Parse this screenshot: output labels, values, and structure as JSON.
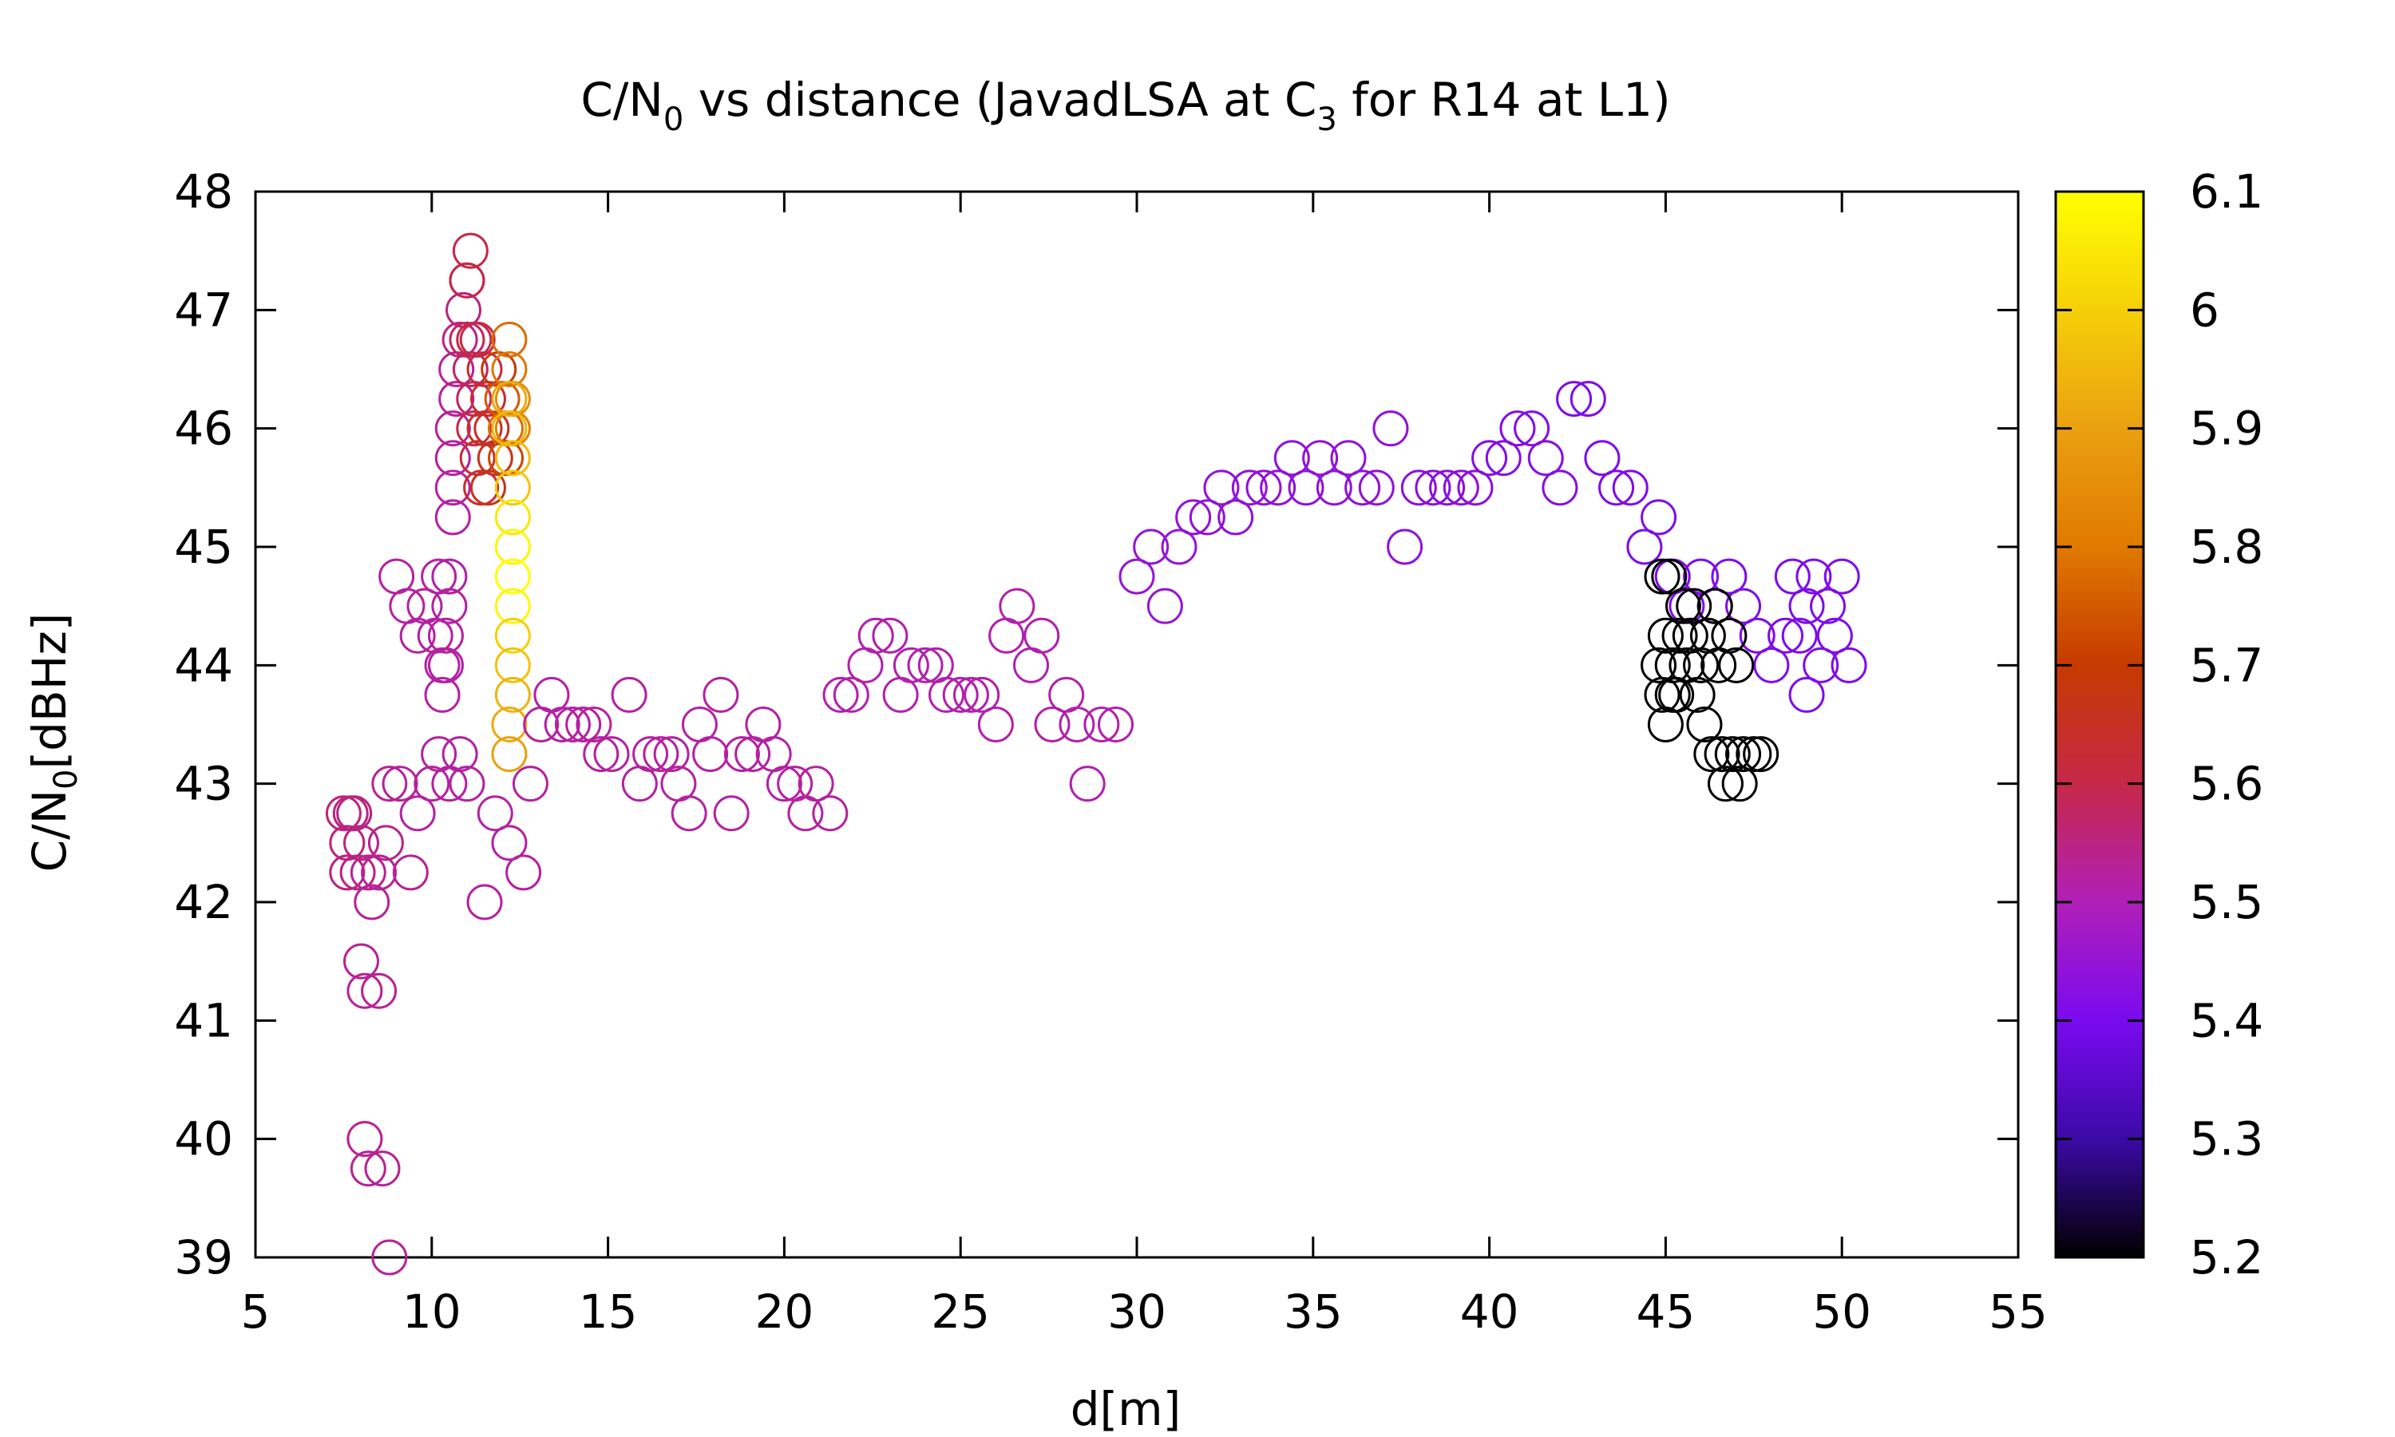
{
  "chart_data": {
    "type": "scatter",
    "title": {
      "part1": "C/N",
      "sub1": "0",
      "part2": " vs distance (JavadLSA at C",
      "sub2": "3",
      "part3": " for R14 at L1)"
    },
    "xlabel": "d[m]",
    "ylabel": {
      "part1": "C/N",
      "sub": "0",
      "part2": "[dBHz]"
    },
    "xlim": [
      5,
      55
    ],
    "ylim": [
      39,
      48
    ],
    "xticks": [
      5,
      10,
      15,
      20,
      25,
      30,
      35,
      40,
      45,
      50,
      55
    ],
    "yticks": [
      39,
      40,
      41,
      42,
      43,
      44,
      45,
      46,
      47,
      48
    ],
    "grid": false,
    "marker": "open-circle",
    "colorbar": {
      "range": [
        5.2,
        6.1
      ],
      "ticks": [
        "5.2",
        "5.3",
        "5.4",
        "5.5",
        "5.6",
        "5.7",
        "5.8",
        "5.9",
        "6",
        "6.1"
      ],
      "palette": [
        "#000000",
        "#3b0aa6",
        "#7a0af0",
        "#b01fb8",
        "#c62848",
        "#c63a00",
        "#e07a00",
        "#eaa010",
        "#f5d008",
        "#ffff00"
      ]
    },
    "points": [
      [
        7.5,
        42.75,
        5.56
      ],
      [
        7.7,
        42.75,
        5.55
      ],
      [
        7.8,
        42.75,
        5.55
      ],
      [
        7.6,
        42.5,
        5.55
      ],
      [
        8.0,
        42.5,
        5.54
      ],
      [
        7.6,
        42.25,
        5.55
      ],
      [
        7.9,
        42.25,
        5.55
      ],
      [
        8.2,
        42.25,
        5.54
      ],
      [
        8.5,
        42.25,
        5.53
      ],
      [
        8.3,
        42.0,
        5.53
      ],
      [
        8.7,
        42.5,
        5.54
      ],
      [
        8.0,
        41.5,
        5.53
      ],
      [
        8.5,
        41.25,
        5.53
      ],
      [
        8.1,
        41.25,
        5.53
      ],
      [
        8.1,
        40.0,
        5.53
      ],
      [
        8.2,
        39.75,
        5.53
      ],
      [
        8.6,
        39.75,
        5.53
      ],
      [
        8.8,
        39.0,
        5.53
      ],
      [
        8.8,
        43.0,
        5.53
      ],
      [
        9.1,
        43.0,
        5.53
      ],
      [
        9.4,
        42.25,
        5.53
      ],
      [
        9.6,
        42.75,
        5.52
      ],
      [
        10.0,
        43.0,
        5.52
      ],
      [
        10.2,
        43.25,
        5.52
      ],
      [
        10.5,
        43.0,
        5.52
      ],
      [
        11.0,
        43.0,
        5.52
      ],
      [
        10.8,
        43.25,
        5.52
      ],
      [
        9.0,
        44.75,
        5.52
      ],
      [
        9.3,
        44.5,
        5.52
      ],
      [
        9.6,
        44.25,
        5.52
      ],
      [
        9.8,
        44.5,
        5.52
      ],
      [
        10.1,
        44.25,
        5.52
      ],
      [
        10.3,
        44.0,
        5.52
      ],
      [
        10.3,
        43.75,
        5.52
      ],
      [
        10.4,
        44.25,
        5.52
      ],
      [
        10.5,
        44.5,
        5.52
      ],
      [
        10.5,
        44.75,
        5.52
      ],
      [
        10.4,
        44.0,
        5.52
      ],
      [
        10.2,
        44.75,
        5.52
      ],
      [
        10.6,
        45.25,
        5.52
      ],
      [
        10.6,
        45.5,
        5.52
      ],
      [
        10.6,
        45.75,
        5.52
      ],
      [
        10.6,
        46.0,
        5.53
      ],
      [
        10.7,
        46.25,
        5.53
      ],
      [
        10.7,
        46.5,
        5.53
      ],
      [
        10.8,
        46.75,
        5.54
      ],
      [
        10.9,
        47.0,
        5.55
      ],
      [
        11.0,
        47.25,
        5.58
      ],
      [
        11.1,
        47.5,
        5.6
      ],
      [
        11.0,
        47.25,
        5.6
      ],
      [
        11.0,
        46.75,
        5.58
      ],
      [
        11.1,
        46.5,
        5.58
      ],
      [
        11.2,
        46.25,
        5.58
      ],
      [
        11.2,
        46.0,
        5.6
      ],
      [
        11.3,
        45.75,
        5.62
      ],
      [
        11.4,
        45.5,
        5.63
      ],
      [
        11.5,
        46.5,
        5.62
      ],
      [
        11.6,
        46.25,
        5.63
      ],
      [
        11.7,
        46.0,
        5.65
      ],
      [
        11.8,
        45.75,
        5.66
      ],
      [
        11.6,
        45.5,
        5.66
      ],
      [
        11.3,
        46.75,
        5.6
      ],
      [
        11.5,
        46.0,
        5.65
      ],
      [
        11.2,
        46.75,
        5.6
      ],
      [
        11.9,
        46.5,
        5.7
      ],
      [
        12.0,
        46.25,
        5.75
      ],
      [
        12.1,
        46.0,
        5.78
      ],
      [
        12.2,
        46.75,
        5.78
      ],
      [
        12.2,
        46.5,
        5.8
      ],
      [
        12.1,
        45.75,
        5.72
      ],
      [
        12.3,
        46.0,
        5.82
      ],
      [
        12.3,
        46.25,
        5.85
      ],
      [
        12.2,
        46.25,
        5.92
      ],
      [
        12.2,
        46.0,
        5.95
      ],
      [
        12.3,
        45.75,
        5.96
      ],
      [
        12.3,
        45.5,
        5.98
      ],
      [
        12.3,
        45.25,
        6.05
      ],
      [
        12.3,
        45.0,
        6.08
      ],
      [
        12.3,
        44.75,
        6.1
      ],
      [
        12.3,
        44.5,
        6.08
      ],
      [
        12.3,
        44.25,
        6.0
      ],
      [
        12.3,
        44.0,
        5.97
      ],
      [
        12.3,
        43.75,
        5.94
      ],
      [
        12.2,
        43.5,
        5.92
      ],
      [
        12.2,
        43.25,
        5.9
      ],
      [
        11.5,
        42.0,
        5.52
      ],
      [
        11.8,
        42.75,
        5.52
      ],
      [
        12.2,
        42.5,
        5.52
      ],
      [
        12.6,
        42.25,
        5.52
      ],
      [
        12.8,
        43.0,
        5.52
      ],
      [
        13.1,
        43.5,
        5.52
      ],
      [
        13.4,
        43.75,
        5.52
      ],
      [
        13.7,
        43.5,
        5.52
      ],
      [
        14.0,
        43.5,
        5.52
      ],
      [
        14.3,
        43.5,
        5.52
      ],
      [
        14.6,
        43.5,
        5.52
      ],
      [
        14.8,
        43.25,
        5.52
      ],
      [
        15.1,
        43.25,
        5.52
      ],
      [
        15.6,
        43.75,
        5.52
      ],
      [
        15.9,
        43.0,
        5.52
      ],
      [
        16.2,
        43.25,
        5.52
      ],
      [
        16.5,
        43.25,
        5.52
      ],
      [
        16.8,
        43.25,
        5.52
      ],
      [
        17.0,
        43.0,
        5.52
      ],
      [
        17.3,
        42.75,
        5.52
      ],
      [
        17.6,
        43.5,
        5.52
      ],
      [
        17.9,
        43.25,
        5.52
      ],
      [
        18.2,
        43.75,
        5.52
      ],
      [
        18.5,
        42.75,
        5.52
      ],
      [
        18.8,
        43.25,
        5.52
      ],
      [
        19.1,
        43.25,
        5.52
      ],
      [
        19.4,
        43.5,
        5.52
      ],
      [
        19.7,
        43.25,
        5.52
      ],
      [
        20.0,
        43.0,
        5.52
      ],
      [
        20.3,
        43.0,
        5.52
      ],
      [
        20.6,
        42.75,
        5.52
      ],
      [
        20.9,
        43.0,
        5.52
      ],
      [
        21.3,
        42.75,
        5.52
      ],
      [
        21.6,
        43.75,
        5.51
      ],
      [
        21.9,
        43.75,
        5.51
      ],
      [
        22.3,
        44.0,
        5.51
      ],
      [
        22.6,
        44.25,
        5.51
      ],
      [
        23.0,
        44.25,
        5.51
      ],
      [
        23.3,
        43.75,
        5.51
      ],
      [
        23.6,
        44.0,
        5.51
      ],
      [
        24.0,
        44.0,
        5.51
      ],
      [
        24.3,
        44.0,
        5.51
      ],
      [
        24.6,
        43.75,
        5.51
      ],
      [
        25.0,
        43.75,
        5.51
      ],
      [
        25.3,
        43.75,
        5.51
      ],
      [
        25.6,
        43.75,
        5.51
      ],
      [
        26.0,
        43.5,
        5.51
      ],
      [
        26.3,
        44.25,
        5.51
      ],
      [
        26.6,
        44.5,
        5.51
      ],
      [
        27.0,
        44.0,
        5.51
      ],
      [
        27.3,
        44.25,
        5.51
      ],
      [
        27.6,
        43.5,
        5.51
      ],
      [
        28.0,
        43.75,
        5.51
      ],
      [
        28.3,
        43.5,
        5.51
      ],
      [
        28.6,
        43.0,
        5.51
      ],
      [
        29.0,
        43.5,
        5.51
      ],
      [
        29.4,
        43.5,
        5.51
      ],
      [
        30.0,
        44.75,
        5.45
      ],
      [
        30.4,
        45.0,
        5.45
      ],
      [
        30.8,
        44.5,
        5.45
      ],
      [
        31.2,
        45.0,
        5.45
      ],
      [
        31.6,
        45.25,
        5.44
      ],
      [
        32.0,
        45.25,
        5.44
      ],
      [
        32.4,
        45.5,
        5.44
      ],
      [
        32.8,
        45.25,
        5.44
      ],
      [
        33.2,
        45.5,
        5.44
      ],
      [
        33.6,
        45.5,
        5.44
      ],
      [
        34.0,
        45.5,
        5.44
      ],
      [
        34.4,
        45.75,
        5.44
      ],
      [
        34.8,
        45.5,
        5.44
      ],
      [
        35.2,
        45.75,
        5.44
      ],
      [
        35.6,
        45.5,
        5.44
      ],
      [
        36.0,
        45.75,
        5.44
      ],
      [
        36.4,
        45.5,
        5.44
      ],
      [
        36.8,
        45.5,
        5.44
      ],
      [
        37.2,
        46.0,
        5.44
      ],
      [
        37.6,
        45.0,
        5.44
      ],
      [
        38.0,
        45.5,
        5.43
      ],
      [
        38.4,
        45.5,
        5.43
      ],
      [
        38.8,
        45.5,
        5.43
      ],
      [
        39.2,
        45.5,
        5.43
      ],
      [
        39.6,
        45.5,
        5.43
      ],
      [
        40.0,
        45.75,
        5.42
      ],
      [
        40.4,
        45.75,
        5.42
      ],
      [
        40.8,
        46.0,
        5.42
      ],
      [
        41.2,
        46.0,
        5.42
      ],
      [
        41.6,
        45.75,
        5.42
      ],
      [
        42.0,
        45.5,
        5.42
      ],
      [
        42.4,
        46.25,
        5.41
      ],
      [
        42.8,
        46.25,
        5.41
      ],
      [
        43.2,
        45.75,
        5.41
      ],
      [
        43.6,
        45.5,
        5.41
      ],
      [
        44.0,
        45.5,
        5.41
      ],
      [
        44.4,
        45.0,
        5.41
      ],
      [
        44.8,
        45.25,
        5.41
      ],
      [
        45.2,
        44.75,
        5.41
      ],
      [
        45.6,
        44.5,
        5.41
      ],
      [
        46.0,
        44.75,
        5.41
      ],
      [
        46.4,
        44.5,
        5.41
      ],
      [
        46.8,
        44.75,
        5.41
      ],
      [
        47.2,
        44.5,
        5.41
      ],
      [
        47.6,
        44.25,
        5.41
      ],
      [
        48.0,
        44.0,
        5.41
      ],
      [
        48.4,
        44.25,
        5.41
      ],
      [
        48.8,
        44.25,
        5.41
      ],
      [
        49.2,
        44.75,
        5.41
      ],
      [
        49.6,
        44.5,
        5.41
      ],
      [
        50.0,
        44.75,
        5.41
      ],
      [
        49.0,
        43.75,
        5.41
      ],
      [
        49.4,
        44.0,
        5.41
      ],
      [
        49.8,
        44.25,
        5.41
      ],
      [
        50.2,
        44.0,
        5.41
      ],
      [
        48.6,
        44.75,
        5.41
      ],
      [
        49.0,
        44.5,
        5.41
      ],
      [
        44.9,
        44.75,
        5.2
      ],
      [
        45.1,
        44.75,
        5.2
      ],
      [
        45.0,
        44.25,
        5.2
      ],
      [
        45.2,
        44.0,
        5.2
      ],
      [
        45.3,
        43.75,
        5.2
      ],
      [
        45.4,
        44.25,
        5.2
      ],
      [
        45.5,
        44.5,
        5.2
      ],
      [
        45.6,
        44.0,
        5.2
      ],
      [
        45.7,
        44.25,
        5.2
      ],
      [
        45.8,
        44.5,
        5.2
      ],
      [
        45.9,
        43.75,
        5.2
      ],
      [
        46.0,
        44.0,
        5.2
      ],
      [
        46.1,
        43.5,
        5.2
      ],
      [
        46.2,
        44.25,
        5.2
      ],
      [
        46.3,
        43.25,
        5.2
      ],
      [
        46.4,
        44.5,
        5.2
      ],
      [
        46.5,
        44.0,
        5.2
      ],
      [
        46.6,
        43.25,
        5.2
      ],
      [
        46.7,
        43.0,
        5.2
      ],
      [
        46.8,
        44.25,
        5.2
      ],
      [
        46.9,
        43.25,
        5.2
      ],
      [
        47.0,
        44.0,
        5.2
      ],
      [
        47.1,
        43.0,
        5.2
      ],
      [
        47.2,
        43.25,
        5.2
      ],
      [
        47.5,
        43.25,
        5.2
      ],
      [
        47.7,
        43.25,
        5.2
      ],
      [
        44.9,
        43.75,
        5.2
      ],
      [
        45.0,
        43.5,
        5.2
      ],
      [
        44.8,
        44.0,
        5.2
      ],
      [
        45.2,
        43.75,
        5.2
      ]
    ]
  }
}
